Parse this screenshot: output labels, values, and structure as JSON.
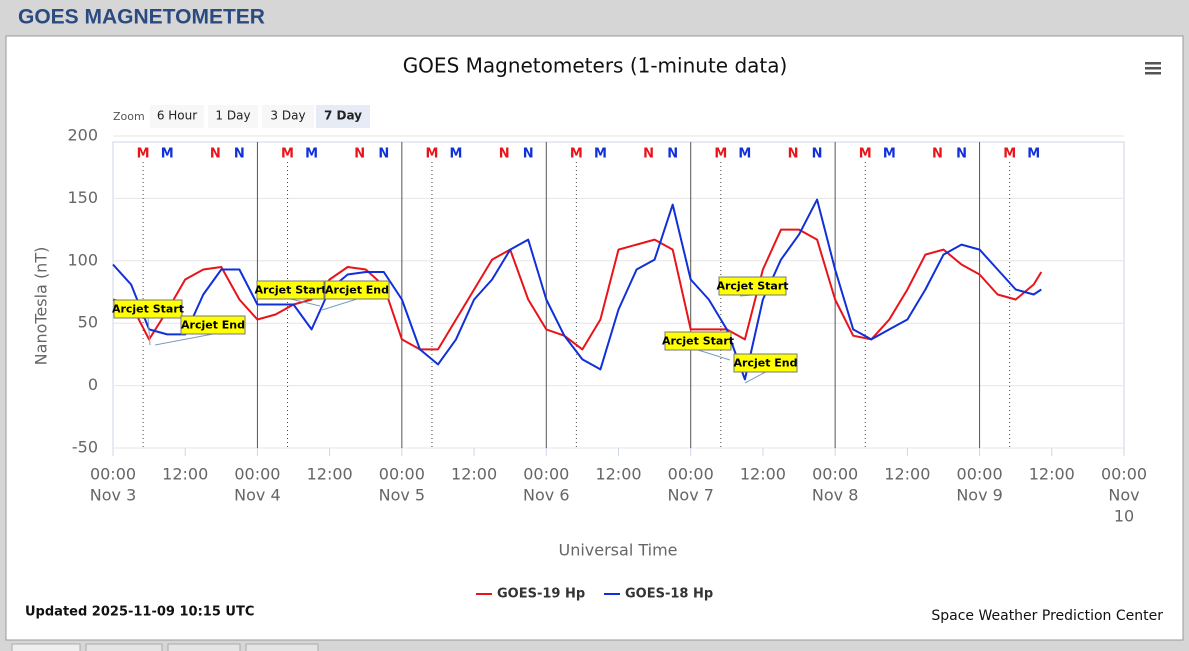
{
  "header": {
    "title": "GOES MAGNETOMETER"
  },
  "zoom": {
    "label": "Zoom",
    "buttons": [
      "6 Hour",
      "1 Day",
      "3 Day",
      "7 Day"
    ],
    "selected": 3
  },
  "chart_data": {
    "type": "line",
    "title": "GOES Magnetometers (1-minute data)",
    "x_label": "Universal Time",
    "y_label": "NanoTesla (nT)",
    "xlim": [
      "Nov 3 00:00",
      "Nov 10 00:00"
    ],
    "xticks": [
      {
        "value": "Nov 3 00:00",
        "label": [
          "00:00",
          "Nov 3"
        ]
      },
      {
        "value": "Nov 3 12:00",
        "label": [
          "12:00"
        ]
      },
      {
        "value": "Nov 4 00:00",
        "label": [
          "00:00",
          "Nov 4"
        ]
      },
      {
        "value": "Nov 4 12:00",
        "label": [
          "12:00"
        ]
      },
      {
        "value": "Nov 5 00:00",
        "label": [
          "00:00",
          "Nov 5"
        ]
      },
      {
        "value": "Nov 5 12:00",
        "label": [
          "12:00"
        ]
      },
      {
        "value": "Nov 6 00:00",
        "label": [
          "00:00",
          "Nov 6"
        ]
      },
      {
        "value": "Nov 6 12:00",
        "label": [
          "12:00"
        ]
      },
      {
        "value": "Nov 7 00:00",
        "label": [
          "00:00",
          "Nov 7"
        ]
      },
      {
        "value": "Nov 7 12:00",
        "label": [
          "12:00"
        ]
      },
      {
        "value": "Nov 8 00:00",
        "label": [
          "00:00",
          "Nov 8"
        ]
      },
      {
        "value": "Nov 8 12:00",
        "label": [
          "12:00"
        ]
      },
      {
        "value": "Nov 9 00:00",
        "label": [
          "00:00",
          "Nov 9"
        ]
      },
      {
        "value": "Nov 9 12:00",
        "label": [
          "12:00"
        ]
      },
      {
        "value": "Nov 10 00:00",
        "label": [
          "00:00",
          "Nov",
          "10"
        ]
      }
    ],
    "ylim": [
      -50,
      200
    ],
    "yticks": [
      -50,
      0,
      50,
      100,
      150,
      200
    ],
    "grid": true,
    "x": [
      "Nov 3 00:00",
      "Nov 3 03:00",
      "Nov 3 06:00",
      "Nov 3 09:00",
      "Nov 3 12:00",
      "Nov 3 15:00",
      "Nov 3 18:00",
      "Nov 3 21:00",
      "Nov 4 00:00",
      "Nov 4 03:00",
      "Nov 4 06:00",
      "Nov 4 09:00",
      "Nov 4 12:00",
      "Nov 4 15:00",
      "Nov 4 18:00",
      "Nov 4 21:00",
      "Nov 5 00:00",
      "Nov 5 03:00",
      "Nov 5 06:00",
      "Nov 5 09:00",
      "Nov 5 12:00",
      "Nov 5 15:00",
      "Nov 5 18:00",
      "Nov 5 21:00",
      "Nov 6 00:00",
      "Nov 6 03:00",
      "Nov 6 06:00",
      "Nov 6 09:00",
      "Nov 6 12:00",
      "Nov 6 15:00",
      "Nov 6 18:00",
      "Nov 6 21:00",
      "Nov 7 00:00",
      "Nov 7 03:00",
      "Nov 7 06:00",
      "Nov 7 09:00",
      "Nov 7 12:00",
      "Nov 7 15:00",
      "Nov 7 18:00",
      "Nov 7 21:00",
      "Nov 8 00:00",
      "Nov 8 03:00",
      "Nov 8 06:00",
      "Nov 8 09:00",
      "Nov 8 12:00",
      "Nov 8 15:00",
      "Nov 8 18:00",
      "Nov 8 21:00",
      "Nov 9 00:00",
      "Nov 9 03:00",
      "Nov 9 06:00",
      "Nov 9 09:00",
      "Nov 9 10:15"
    ],
    "series": [
      {
        "name": "GOES-19 Hp",
        "color": "#e8141a",
        "values": [
          69,
          65,
          37,
          60,
          85,
          93,
          95,
          69,
          53,
          57,
          65,
          69,
          85,
          95,
          93,
          80,
          37,
          29,
          29,
          53,
          77,
          101,
          109,
          69,
          45,
          40,
          29,
          53,
          109,
          113,
          117,
          109,
          45,
          45,
          45,
          37,
          93,
          125,
          125,
          117,
          69,
          40,
          37,
          53,
          77,
          105,
          109,
          97,
          89,
          73,
          69,
          81,
          91
        ]
      },
      {
        "name": "GOES-18 Hp",
        "color": "#1030d8",
        "values": [
          97,
          81,
          45,
          41,
          41,
          73,
          93,
          93,
          65,
          65,
          65,
          45,
          77,
          89,
          91,
          91,
          69,
          29,
          17,
          37,
          69,
          85,
          109,
          117,
          69,
          40,
          21,
          13,
          61,
          93,
          101,
          145,
          85,
          69,
          45,
          5,
          69,
          101,
          121,
          149,
          93,
          45,
          37,
          45,
          53,
          77,
          105,
          113,
          109,
          93,
          77,
          73,
          77
        ]
      }
    ],
    "markers": [
      {
        "text": "M",
        "color": "#e8141a",
        "x": "Nov 3 05:00",
        "line": true
      },
      {
        "text": "M",
        "color": "#1030d8",
        "x": "Nov 3 09:00"
      },
      {
        "text": "N",
        "color": "#e8141a",
        "x": "Nov 3 17:00"
      },
      {
        "text": "N",
        "color": "#1030d8",
        "x": "Nov 3 21:00"
      },
      {
        "text": "M",
        "color": "#e8141a",
        "x": "Nov 4 05:00",
        "line": true
      },
      {
        "text": "M",
        "color": "#1030d8",
        "x": "Nov 4 09:00"
      },
      {
        "text": "N",
        "color": "#e8141a",
        "x": "Nov 4 17:00"
      },
      {
        "text": "N",
        "color": "#1030d8",
        "x": "Nov 4 21:00"
      },
      {
        "text": "M",
        "color": "#e8141a",
        "x": "Nov 5 05:00",
        "line": true
      },
      {
        "text": "M",
        "color": "#1030d8",
        "x": "Nov 5 09:00"
      },
      {
        "text": "N",
        "color": "#e8141a",
        "x": "Nov 5 17:00"
      },
      {
        "text": "N",
        "color": "#1030d8",
        "x": "Nov 5 21:00"
      },
      {
        "text": "M",
        "color": "#e8141a",
        "x": "Nov 6 05:00",
        "line": true
      },
      {
        "text": "M",
        "color": "#1030d8",
        "x": "Nov 6 09:00"
      },
      {
        "text": "N",
        "color": "#e8141a",
        "x": "Nov 6 17:00"
      },
      {
        "text": "N",
        "color": "#1030d8",
        "x": "Nov 6 21:00"
      },
      {
        "text": "M",
        "color": "#e8141a",
        "x": "Nov 7 05:00",
        "line": true
      },
      {
        "text": "M",
        "color": "#1030d8",
        "x": "Nov 7 09:00"
      },
      {
        "text": "N",
        "color": "#e8141a",
        "x": "Nov 7 17:00"
      },
      {
        "text": "N",
        "color": "#1030d8",
        "x": "Nov 7 21:00"
      },
      {
        "text": "M",
        "color": "#e8141a",
        "x": "Nov 8 05:00",
        "line": true
      },
      {
        "text": "M",
        "color": "#1030d8",
        "x": "Nov 8 09:00"
      },
      {
        "text": "N",
        "color": "#e8141a",
        "x": "Nov 8 17:00"
      },
      {
        "text": "N",
        "color": "#1030d8",
        "x": "Nov 8 21:00"
      },
      {
        "text": "M",
        "color": "#e8141a",
        "x": "Nov 9 05:00",
        "line": true
      },
      {
        "text": "M",
        "color": "#1030d8",
        "x": "Nov 9 09:00"
      }
    ],
    "annotations": [
      "Arcjet Start",
      "Arcjet End",
      "Arcjet Start",
      "Arcjet End",
      "Arcjet Start",
      "Arcjet Start",
      "Arcjet End"
    ]
  },
  "footer": {
    "updated": "Updated 2025-11-09 10:15 UTC",
    "credit": "Space Weather Prediction Center"
  }
}
